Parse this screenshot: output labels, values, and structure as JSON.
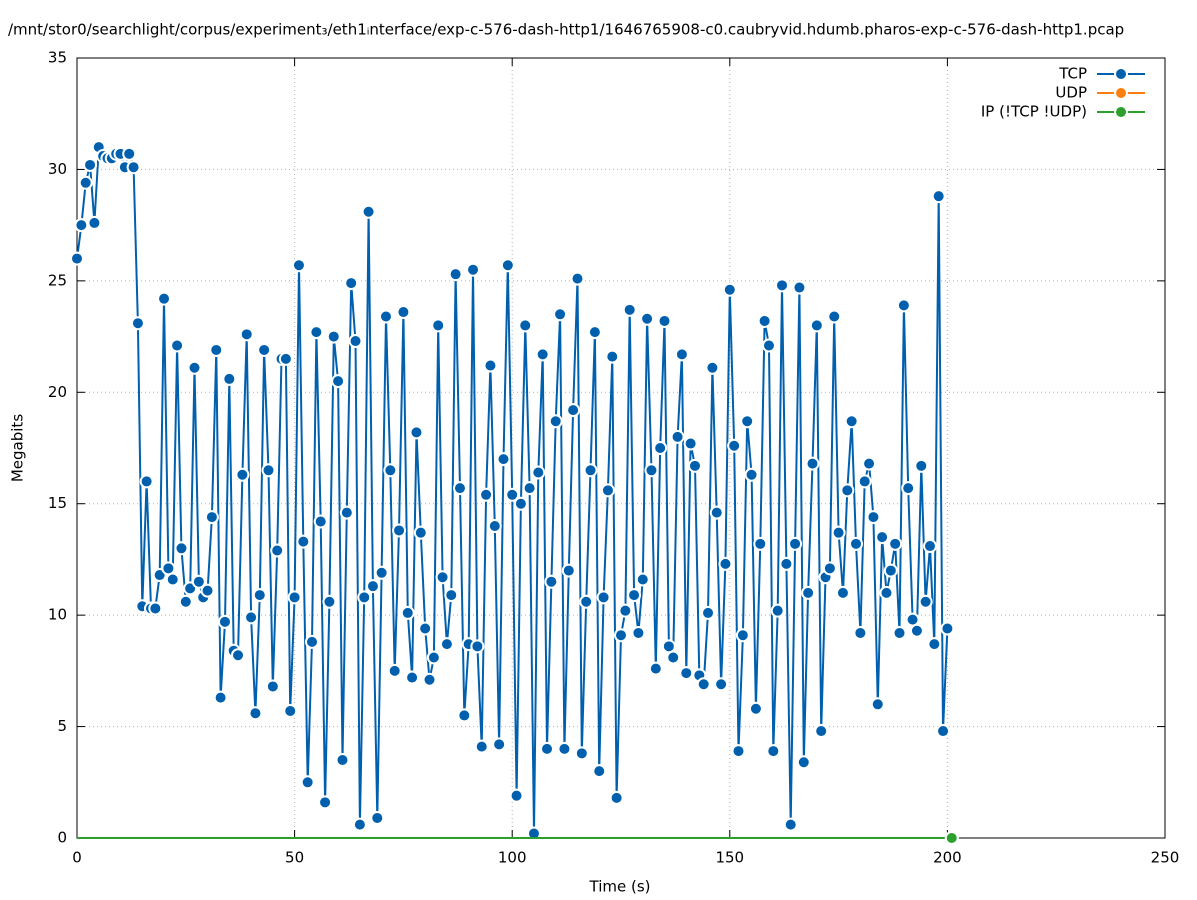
{
  "chart_data": {
    "type": "line",
    "title": "/mnt/stor0/searchlight/corpus/experiment₃/eth1ᵢnterface/exp-c-576-dash-http1/1646765908-c0.caubryvid.hdumb.pharos-exp-c-576-dash-http1.pcap",
    "x_label": "Time (s)",
    "y_label": "Megabits",
    "xlim": [
      0,
      250
    ],
    "xticks": [
      0,
      50,
      100,
      150,
      200,
      250
    ],
    "ylim": [
      0,
      35
    ],
    "yticks": [
      0,
      5,
      10,
      15,
      20,
      25,
      30,
      35
    ],
    "grid": true,
    "legend": "top-right",
    "series": [
      {
        "name": "TCP",
        "color": "#0060ad",
        "x": [
          0,
          1,
          2,
          3,
          4,
          5,
          6,
          7,
          8,
          9,
          10,
          11,
          12,
          13,
          14,
          15,
          16,
          17,
          18,
          19,
          20,
          21,
          22,
          23,
          24,
          25,
          26,
          27,
          28,
          29,
          30,
          31,
          32,
          33,
          34,
          35,
          36,
          37,
          38,
          39,
          40,
          41,
          42,
          43,
          44,
          45,
          46,
          47,
          48,
          49,
          50,
          51,
          52,
          53,
          54,
          55,
          56,
          57,
          58,
          59,
          60,
          61,
          62,
          63,
          64,
          65,
          66,
          67,
          68,
          69,
          70,
          71,
          72,
          73,
          74,
          75,
          76,
          77,
          78,
          79,
          80,
          81,
          82,
          83,
          84,
          85,
          86,
          87,
          88,
          89,
          90,
          91,
          92,
          93,
          94,
          95,
          96,
          97,
          98,
          99,
          100,
          101,
          102,
          103,
          104,
          105,
          106,
          107,
          108,
          109,
          110,
          111,
          112,
          113,
          114,
          115,
          116,
          117,
          118,
          119,
          120,
          121,
          122,
          123,
          124,
          125,
          126,
          127,
          128,
          129,
          130,
          131,
          132,
          133,
          134,
          135,
          136,
          137,
          138,
          139,
          140,
          141,
          142,
          143,
          144,
          145,
          146,
          147,
          148,
          149,
          150,
          151,
          152,
          153,
          154,
          155,
          156,
          157,
          158,
          159,
          160,
          161,
          162,
          163,
          164,
          165,
          166,
          167,
          168,
          169,
          170,
          171,
          172,
          173,
          174,
          175,
          176,
          177,
          178,
          179,
          180,
          181,
          182,
          183,
          184,
          185,
          186,
          187,
          188,
          189,
          190,
          191,
          192,
          193,
          194,
          195,
          196,
          197,
          198,
          199,
          200
        ],
        "values": [
          26.0,
          27.5,
          29.4,
          30.2,
          27.6,
          31.0,
          30.6,
          30.5,
          30.5,
          30.7,
          30.7,
          30.1,
          30.7,
          30.1,
          23.1,
          10.4,
          16.0,
          10.3,
          10.3,
          11.8,
          24.2,
          12.1,
          11.6,
          22.1,
          13.0,
          10.6,
          11.2,
          21.1,
          11.5,
          10.8,
          11.1,
          14.4,
          21.9,
          6.3,
          9.7,
          20.6,
          8.4,
          8.2,
          16.3,
          22.6,
          9.9,
          5.6,
          10.9,
          21.9,
          16.5,
          6.8,
          12.9,
          21.5,
          21.5,
          5.7,
          10.8,
          25.7,
          13.3,
          2.5,
          8.8,
          22.7,
          14.2,
          1.6,
          10.6,
          22.5,
          20.5,
          3.5,
          14.6,
          24.9,
          22.3,
          0.6,
          10.8,
          28.1,
          11.3,
          0.9,
          11.9,
          23.4,
          16.5,
          7.5,
          13.8,
          23.6,
          10.1,
          7.2,
          18.2,
          13.7,
          9.4,
          7.1,
          8.1,
          23.0,
          11.7,
          8.7,
          10.9,
          25.3,
          15.7,
          5.5,
          8.7,
          25.5,
          8.6,
          4.1,
          15.4,
          21.2,
          14.0,
          4.2,
          17.0,
          25.7,
          15.4,
          1.9,
          15.0,
          23.0,
          15.7,
          0.2,
          16.4,
          21.7,
          4.0,
          11.5,
          18.7,
          23.5,
          4.0,
          12.0,
          19.2,
          25.1,
          3.8,
          10.6,
          16.5,
          22.7,
          3.0,
          10.8,
          15.6,
          21.6,
          1.8,
          9.1,
          10.2,
          23.7,
          10.9,
          9.2,
          11.6,
          23.3,
          16.5,
          7.6,
          17.5,
          23.2,
          8.6,
          8.1,
          18.0,
          21.7,
          7.4,
          17.7,
          16.7,
          7.3,
          6.9,
          10.1,
          21.1,
          14.6,
          6.9,
          12.3,
          24.6,
          17.6,
          3.9,
          9.1,
          18.7,
          16.3,
          5.8,
          13.2,
          23.2,
          22.1,
          3.9,
          10.2,
          24.8,
          12.3,
          0.6,
          13.2,
          24.7,
          3.4,
          11.0,
          16.8,
          23.0,
          4.8,
          11.7,
          12.1,
          23.4,
          13.7,
          11.0,
          15.6,
          18.7,
          13.2,
          9.2,
          16.0,
          16.8,
          14.4,
          6.0,
          13.5,
          11.0,
          12.0,
          13.2,
          9.2,
          23.9,
          15.7,
          9.8,
          9.3,
          16.7,
          10.6,
          13.1,
          8.7,
          28.8,
          4.8,
          9.4
        ]
      },
      {
        "name": "UDP",
        "color": "#ff7f0e",
        "x": [
          0,
          201
        ],
        "values": [
          0,
          0
        ]
      },
      {
        "name": "IP (!TCP  !UDP)",
        "color": "#2ca02c",
        "x": [
          0,
          201
        ],
        "values": [
          0,
          0
        ]
      }
    ]
  }
}
